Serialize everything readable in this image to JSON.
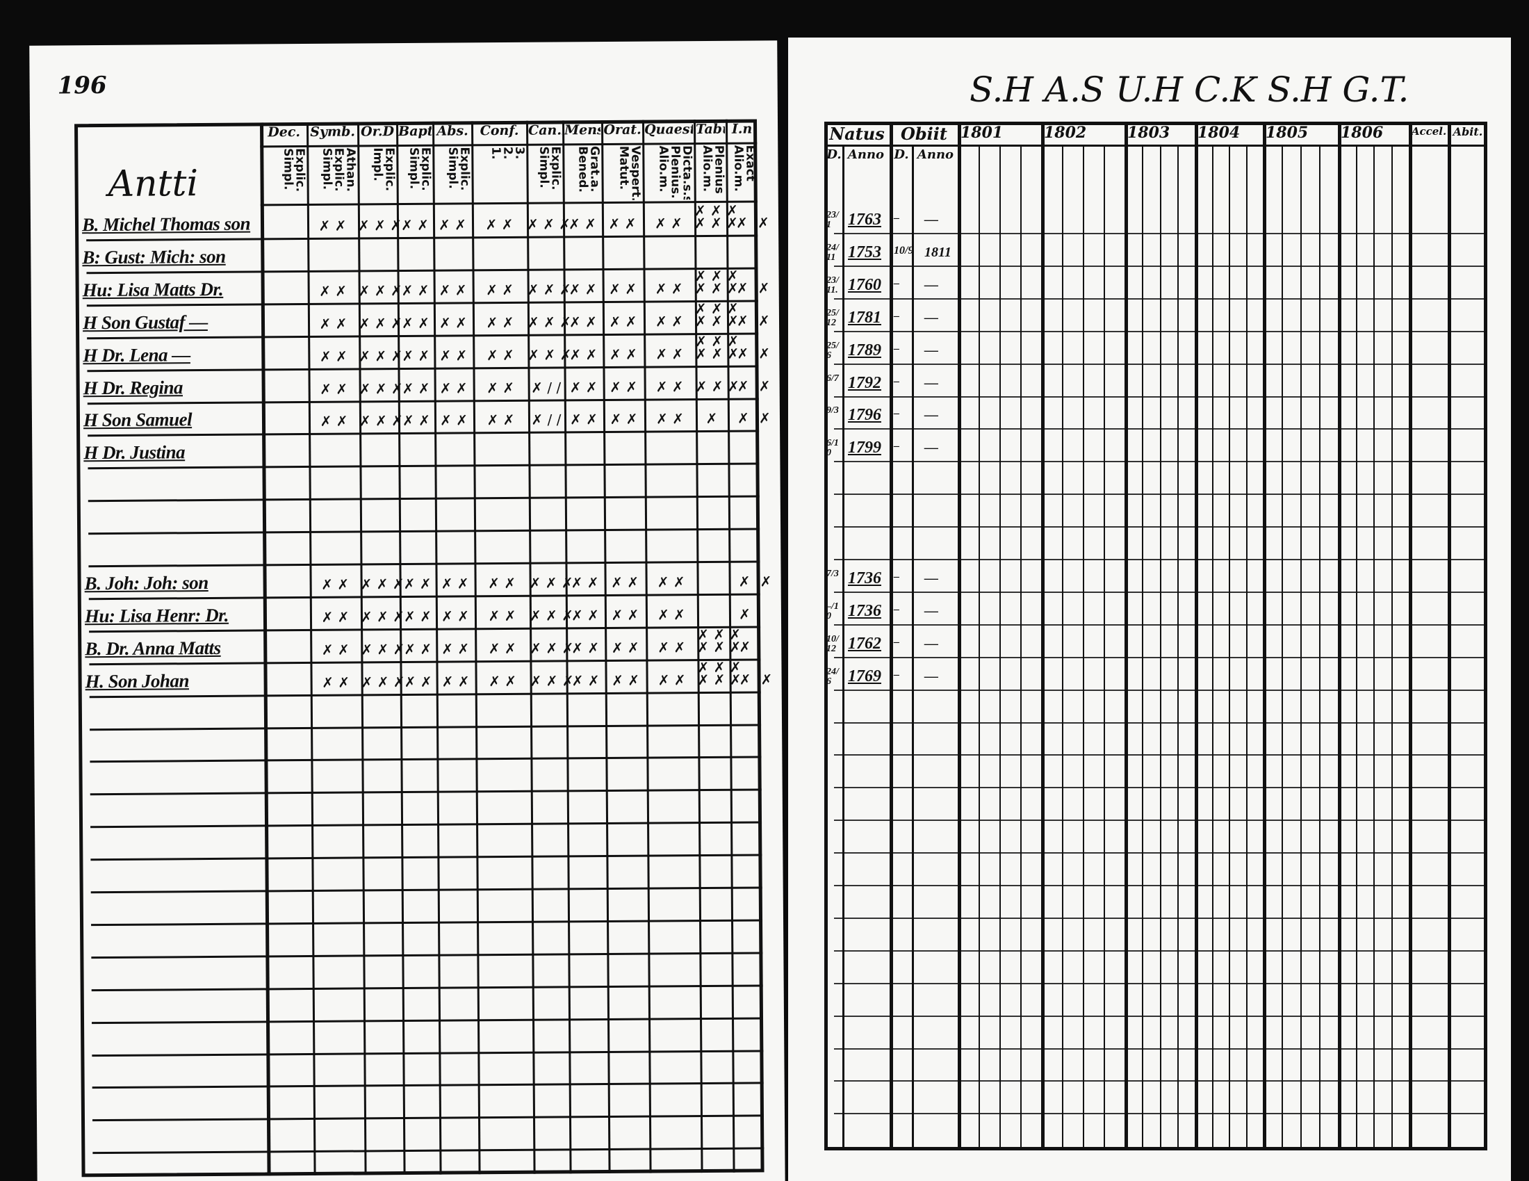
{
  "left_page": {
    "page_number": "196",
    "household_head": "Antti",
    "column_groups": [
      {
        "label": "Dec.",
        "sub": [
          "Explic.",
          "Simpl."
        ]
      },
      {
        "label": "Symb.",
        "sub": [
          "Athan.",
          "Explic.",
          "Simpl."
        ]
      },
      {
        "label": "Or.D",
        "sub": [
          "Explic.",
          "Impl."
        ]
      },
      {
        "label": "Bapt.",
        "sub": [
          "Explic.",
          "Simpl."
        ]
      },
      {
        "label": "Abs.",
        "sub": [
          "Explic.",
          "Simpl."
        ]
      },
      {
        "label": "Conf.",
        "sub": [
          "3.",
          "2.",
          "1."
        ]
      },
      {
        "label": "Can.D",
        "sub": [
          "Explic.",
          "Simpl."
        ]
      },
      {
        "label": "Mens.",
        "sub": [
          "Grat.a.",
          "Bened."
        ]
      },
      {
        "label": "Orat.",
        "sub": [
          "Vespert.",
          "Matut."
        ]
      },
      {
        "label": "Quaest.",
        "sub": [
          "Dicta.s.s.",
          "Plenius.",
          "Alio.m."
        ]
      },
      {
        "label": "Tabul.",
        "sub": [
          "Plenius",
          "Alio.m."
        ]
      },
      {
        "label": "I.n",
        "sub": [
          "Exact",
          "Alio.m."
        ]
      }
    ],
    "rows": [
      {
        "name": "B. Michel Thomas son",
        "marks": [
          "✗ ✗",
          "✗ ✗ ✗",
          "✗ ✗",
          "✗ ✗",
          "✗ ✗",
          "✗ ✗ ✗",
          "✗ ✗",
          "✗ ✗",
          "✗ ✗",
          "✗ ✗ ✗\n✗ ✗ ✗",
          "✗",
          "✗"
        ]
      },
      {
        "name": "B: Gust: Mich: son",
        "marks": [
          "",
          "",
          "",
          "",
          "",
          "",
          "",
          "",
          "",
          "",
          "",
          ""
        ]
      },
      {
        "name": "Hu: Lisa Matts Dr.",
        "marks": [
          "✗ ✗",
          "✗ ✗ ✗",
          "✗ ✗",
          "✗ ✗",
          "✗ ✗",
          "✗ ✗ ✗",
          "✗ ✗",
          "✗ ✗",
          "✗ ✗",
          "✗ ✗ ✗\n✗ ✗ ✗",
          "✗",
          "✗"
        ]
      },
      {
        "name": "H Son Gustaf —",
        "marks": [
          "✗ ✗",
          "✗ ✗ ✗",
          "✗ ✗",
          "✗ ✗",
          "✗ ✗",
          "✗ ✗ ✗",
          "✗ ✗",
          "✗ ✗",
          "✗ ✗",
          "✗ ✗ ✗\n✗ ✗ ✗",
          "✗",
          "✗"
        ]
      },
      {
        "name": "H Dr. Lena —",
        "marks": [
          "✗ ✗",
          "✗ ✗ ✗",
          "✗ ✗",
          "✗ ✗",
          "✗ ✗",
          "✗ ✗ ✗",
          "✗ ✗",
          "✗ ✗",
          "✗ ✗",
          "✗ ✗ ✗\n✗ ✗ ✗",
          "✗",
          "✗"
        ]
      },
      {
        "name": "H Dr. Regina",
        "marks": [
          "✗ ✗",
          "✗ ✗ ✗",
          "✗ ✗",
          "✗ ✗",
          "✗ ✗",
          "✗ / /",
          "✗ ✗",
          "✗ ✗",
          "✗ ✗",
          "✗ ✗ ✗",
          "✗",
          "✗"
        ]
      },
      {
        "name": "H Son Samuel",
        "marks": [
          "✗ ✗",
          "✗ ✗ ✗",
          "✗ ✗",
          "✗ ✗",
          "✗ ✗",
          "✗ / /",
          "✗ ✗",
          "✗ ✗",
          "✗ ✗",
          "✗",
          "✗",
          "✗"
        ]
      },
      {
        "name": "H Dr. Justina",
        "marks": [
          "",
          "",
          "",
          "",
          "",
          "",
          "",
          "",
          "",
          "",
          "",
          ""
        ]
      },
      {
        "name": "",
        "marks": [
          "",
          "",
          "",
          "",
          "",
          "",
          "",
          "",
          "",
          "",
          "",
          ""
        ]
      },
      {
        "name": "",
        "marks": [
          "",
          "",
          "",
          "",
          "",
          "",
          "",
          "",
          "",
          "",
          "",
          ""
        ]
      },
      {
        "name": "",
        "marks": [
          "",
          "",
          "",
          "",
          "",
          "",
          "",
          "",
          "",
          "",
          "",
          ""
        ]
      },
      {
        "name": "B. Joh: Joh: son",
        "marks": [
          "✗ ✗",
          "✗ ✗ ✗",
          "✗ ✗",
          "✗ ✗",
          "✗ ✗",
          "✗ ✗ ✗",
          "✗ ✗",
          "✗ ✗",
          "✗ ✗",
          "",
          "✗",
          "✗"
        ]
      },
      {
        "name": "Hu: Lisa Henr: Dr.",
        "marks": [
          "✗ ✗",
          "✗ ✗ ✗",
          "✗ ✗",
          "✗ ✗",
          "✗ ✗",
          "✗ ✗ ✗",
          "✗ ✗",
          "✗ ✗",
          "✗ ✗",
          "",
          "✗",
          ""
        ]
      },
      {
        "name": "B. Dr. Anna Matts",
        "marks": [
          "✗ ✗",
          "✗ ✗ ✗",
          "✗ ✗",
          "✗ ✗",
          "✗ ✗",
          "✗ ✗ ✗",
          "✗ ✗",
          "✗ ✗",
          "✗ ✗",
          "✗ ✗ ✗\n✗ ✗ ✗",
          "✗",
          ""
        ]
      },
      {
        "name": "H. Son Johan",
        "marks": [
          "✗ ✗",
          "✗ ✗ ✗",
          "✗ ✗",
          "✗ ✗",
          "✗ ✗",
          "✗ ✗ ✗",
          "✗ ✗",
          "✗ ✗",
          "✗ ✗",
          "✗ ✗ ✗\n✗ ✗ ✗",
          "✗",
          "✗"
        ]
      }
    ]
  },
  "right_page": {
    "title": "S.H  A.S  U.H  C.K  S.H  G.T.",
    "headers": {
      "natus": "Natus",
      "obiit": "Obiit",
      "day": "D.",
      "year": "Anno",
      "accel": "Accel.",
      "abit": "Abit."
    },
    "years": [
      "1801",
      "1802",
      "1803",
      "1804",
      "1805",
      "1806"
    ],
    "rows": [
      {
        "natus_day": "23/1",
        "natus_year": "1763",
        "obiit_day": "–",
        "obiit_year": "—"
      },
      {
        "natus_day": "24/11",
        "natus_year": "1753",
        "obiit_day": "10/9",
        "obiit_year": "1811"
      },
      {
        "natus_day": "23/11.",
        "natus_year": "1760",
        "obiit_day": "–",
        "obiit_year": "—"
      },
      {
        "natus_day": "25/12",
        "natus_year": "1781",
        "obiit_day": "–",
        "obiit_year": "—"
      },
      {
        "natus_day": "25/6",
        "natus_year": "1789",
        "obiit_day": "–",
        "obiit_year": "—"
      },
      {
        "natus_day": "6/7",
        "natus_year": "1792",
        "obiit_day": "–",
        "obiit_year": "—"
      },
      {
        "natus_day": "9/3",
        "natus_year": "1796",
        "obiit_day": "–",
        "obiit_year": "—"
      },
      {
        "natus_day": "6/10",
        "natus_year": "1799",
        "obiit_day": "–",
        "obiit_year": "—"
      },
      {
        "natus_day": "",
        "natus_year": "",
        "obiit_day": "",
        "obiit_year": ""
      },
      {
        "natus_day": "",
        "natus_year": "",
        "obiit_day": "",
        "obiit_year": ""
      },
      {
        "natus_day": "",
        "natus_year": "",
        "obiit_day": "",
        "obiit_year": ""
      },
      {
        "natus_day": "7/3",
        "natus_year": "1736",
        "obiit_day": "–",
        "obiit_year": "—"
      },
      {
        "natus_day": "–/10",
        "natus_year": "1736",
        "obiit_day": "–",
        "obiit_year": "—"
      },
      {
        "natus_day": "10/12",
        "natus_year": "1762",
        "obiit_day": "–",
        "obiit_year": "—"
      },
      {
        "natus_day": "24/6",
        "natus_year": "1769",
        "obiit_day": "–",
        "obiit_year": "—"
      }
    ]
  }
}
